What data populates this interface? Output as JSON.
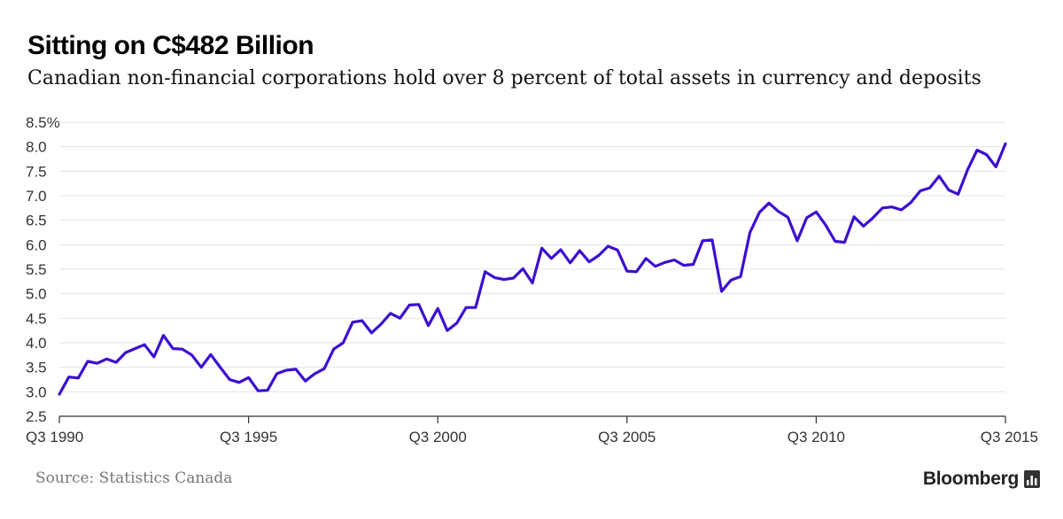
{
  "header": {
    "title": "Sitting on C$482 Billion",
    "subtitle": "Canadian non-financial corporations hold over 8 percent of total assets in currency and deposits"
  },
  "footer": {
    "source": "Source: Statistics Canada",
    "brand": "Bloomberg",
    "brand_icon": "bloomberg-chart-icon"
  },
  "chart_data": {
    "type": "line",
    "title": "Sitting on C$482 Billion",
    "subtitle": "Canadian non-financial corporations hold over 8 percent of total assets in currency and deposits",
    "xlabel": "",
    "ylabel": "",
    "x_ticks": [
      {
        "label": "Q3 1990",
        "value": 1990.5
      },
      {
        "label": "Q3 1995",
        "value": 1995.5
      },
      {
        "label": "Q3 2000",
        "value": 2000.5
      },
      {
        "label": "Q3 2005",
        "value": 2005.5
      },
      {
        "label": "Q3 2010",
        "value": 2010.5
      },
      {
        "label": "Q3 2015",
        "value": 2015.5
      }
    ],
    "y_ticks": [
      {
        "label": "2.5",
        "value": 2.5
      },
      {
        "label": "3.0",
        "value": 3.0
      },
      {
        "label": "3.5",
        "value": 3.5
      },
      {
        "label": "4.0",
        "value": 4.0
      },
      {
        "label": "4.5",
        "value": 4.5
      },
      {
        "label": "5.0",
        "value": 5.0
      },
      {
        "label": "5.5",
        "value": 5.5
      },
      {
        "label": "6.0",
        "value": 6.0
      },
      {
        "label": "6.5",
        "value": 6.5
      },
      {
        "label": "7.0",
        "value": 7.0
      },
      {
        "label": "7.5",
        "value": 7.5
      },
      {
        "label": "8.0",
        "value": 8.0
      },
      {
        "label": "8.5%",
        "value": 8.5
      }
    ],
    "xlim": [
      1990.5,
      2015.5
    ],
    "ylim": [
      2.5,
      8.5
    ],
    "grid": true,
    "legend": "none",
    "line_color": "#3c0fd0",
    "series": [
      {
        "name": "",
        "color": "#3c0fd0",
        "x": [
          1990.5,
          1990.75,
          1991.0,
          1991.25,
          1991.5,
          1991.75,
          1992.0,
          1992.25,
          1992.5,
          1992.75,
          1993.0,
          1993.25,
          1993.5,
          1993.75,
          1994.0,
          1994.25,
          1994.5,
          1994.75,
          1995.0,
          1995.25,
          1995.5,
          1995.75,
          1996.0,
          1996.25,
          1996.5,
          1996.75,
          1997.0,
          1997.25,
          1997.5,
          1997.75,
          1998.0,
          1998.25,
          1998.5,
          1998.75,
          1999.0,
          1999.25,
          1999.5,
          1999.75,
          2000.0,
          2000.25,
          2000.5,
          2000.75,
          2001.0,
          2001.25,
          2001.5,
          2001.75,
          2002.0,
          2002.25,
          2002.5,
          2002.75,
          2003.0,
          2003.25,
          2003.5,
          2003.75,
          2004.0,
          2004.25,
          2004.5,
          2004.75,
          2005.0,
          2005.25,
          2005.5,
          2005.75,
          2006.0,
          2006.25,
          2006.5,
          2006.75,
          2007.0,
          2007.25,
          2007.5,
          2007.75,
          2008.0,
          2008.25,
          2008.5,
          2008.75,
          2009.0,
          2009.25,
          2009.5,
          2009.75,
          2010.0,
          2010.25,
          2010.5,
          2010.75,
          2011.0,
          2011.25,
          2011.5,
          2011.75,
          2012.0,
          2012.25,
          2012.5,
          2012.75,
          2013.0,
          2013.25,
          2013.5,
          2013.75,
          2014.0,
          2014.25,
          2014.5,
          2014.75,
          2015.0,
          2015.25,
          2015.5
        ],
        "values": [
          2.95,
          3.3,
          3.28,
          3.62,
          3.58,
          3.67,
          3.6,
          3.8,
          3.88,
          3.96,
          3.71,
          4.15,
          3.88,
          3.87,
          3.75,
          3.5,
          3.76,
          3.5,
          3.25,
          3.19,
          3.29,
          3.02,
          3.03,
          3.37,
          3.44,
          3.46,
          3.22,
          3.37,
          3.47,
          3.87,
          4.0,
          4.42,
          4.45,
          4.2,
          4.38,
          4.6,
          4.5,
          4.77,
          4.78,
          4.35,
          4.7,
          4.25,
          4.4,
          4.72,
          4.72,
          5.45,
          5.33,
          5.29,
          5.32,
          5.51,
          5.22,
          5.93,
          5.72,
          5.9,
          5.63,
          5.88,
          5.65,
          5.78,
          5.97,
          5.89,
          5.46,
          5.45,
          5.72,
          5.56,
          5.64,
          5.69,
          5.58,
          5.6,
          6.08,
          6.1,
          5.05,
          5.28,
          5.35,
          6.25,
          6.66,
          6.85,
          6.68,
          6.56,
          6.08,
          6.55,
          6.67,
          6.4,
          6.07,
          6.05,
          6.57,
          6.38,
          6.55,
          6.75,
          6.77,
          6.71,
          6.86,
          7.1,
          7.16,
          7.4,
          7.12,
          7.03,
          7.53,
          7.93,
          7.84,
          7.59,
          8.06
        ]
      }
    ]
  }
}
